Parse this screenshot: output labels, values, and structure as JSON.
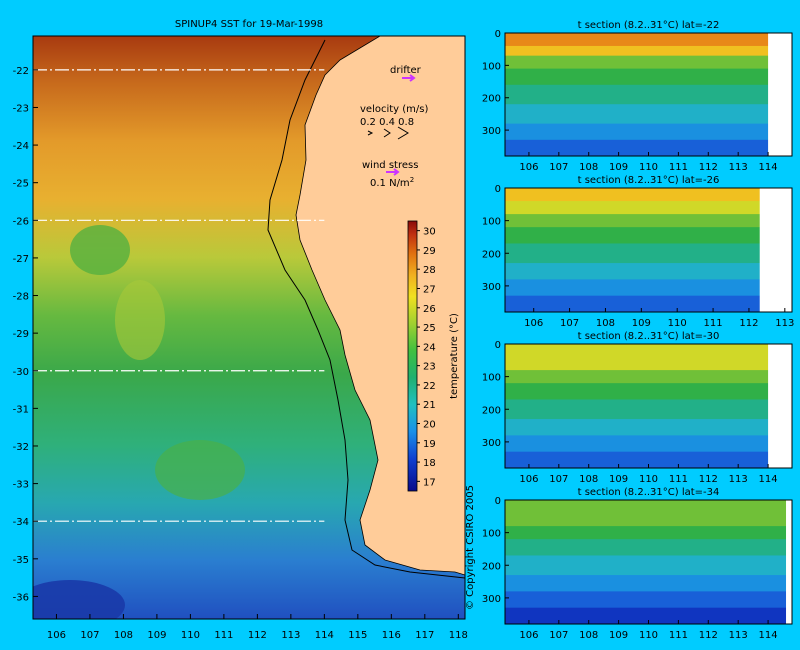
{
  "background_color": "#00ccff",
  "land_color": "#ffcc99",
  "map": {
    "title": "SPINUP4 SST for 19-Mar-1998",
    "x_ticks": [
      "106",
      "107",
      "108",
      "109",
      "110",
      "111",
      "112",
      "113",
      "114",
      "115",
      "116",
      "117",
      "118"
    ],
    "y_ticks": [
      "-22",
      "-23",
      "-24",
      "-25",
      "-26",
      "-27",
      "-28",
      "-29",
      "-30",
      "-31",
      "-32",
      "-33",
      "-34",
      "-35",
      "-36"
    ],
    "xlim": [
      105.3,
      118.2
    ],
    "ylim": [
      -36.6,
      -21.1
    ],
    "section_lines_lat": [
      -22,
      -26,
      -30,
      -34
    ],
    "legend": {
      "drifter": "drifter",
      "velocity_title": "velocity (m/s)",
      "velocity_values": "0.2 0.4 0.8",
      "wind_title": "wind stress",
      "wind_value": "0.1 N/m",
      "wind_exp": "2"
    },
    "colorbar": {
      "label": "temperature (°C)",
      "ticks": [
        "17",
        "18",
        "19",
        "20",
        "21",
        "22",
        "23",
        "24",
        "25",
        "26",
        "27",
        "28",
        "29",
        "30"
      ],
      "range": [
        16.5,
        30.5
      ]
    },
    "copyright": "© Copyright CSIRO 2005"
  },
  "chart_data": [
    {
      "type": "heatmap",
      "title": "SPINUP4 SST for 19-Mar-1998",
      "variable": "temperature (°C)",
      "xlim": [
        105.3,
        118.2
      ],
      "ylim": [
        -36.6,
        -21.1
      ],
      "color_range": [
        16.5,
        30.5
      ],
      "sample_temperature_by_lat": [
        {
          "lat": -22,
          "temp": 28.5
        },
        {
          "lat": -24,
          "temp": 27
        },
        {
          "lat": -26,
          "temp": 25.5
        },
        {
          "lat": -28,
          "temp": 25
        },
        {
          "lat": -30,
          "temp": 23.5
        },
        {
          "lat": -32,
          "temp": 22.5
        },
        {
          "lat": -34,
          "temp": 21.5
        },
        {
          "lat": -36,
          "temp": 19.5
        }
      ]
    },
    {
      "type": "heatmap",
      "title": "t section (8.2..31°C) lat=-22",
      "x_ticks": [
        "106",
        "107",
        "108",
        "109",
        "110",
        "111",
        "112",
        "113",
        "114"
      ],
      "y_ticks": [
        "0",
        "100",
        "200",
        "300"
      ],
      "xlim": [
        105.2,
        114.8
      ],
      "ylim": [
        0,
        380
      ],
      "land_from_lon": 114.0,
      "profile": [
        [
          0,
          28
        ],
        [
          40,
          26
        ],
        [
          70,
          23
        ],
        [
          110,
          21
        ],
        [
          160,
          19
        ],
        [
          220,
          17
        ],
        [
          280,
          15
        ],
        [
          330,
          13
        ],
        [
          380,
          11
        ]
      ]
    },
    {
      "type": "heatmap",
      "title": "t section (8.2..31°C) lat=-26",
      "x_ticks": [
        "106",
        "107",
        "108",
        "109",
        "110",
        "111",
        "112",
        "113"
      ],
      "y_ticks": [
        "0",
        "100",
        "200",
        "300"
      ],
      "xlim": [
        105.2,
        113.2
      ],
      "ylim": [
        0,
        380
      ],
      "land_from_lon": 112.3,
      "profile": [
        [
          0,
          26
        ],
        [
          40,
          25
        ],
        [
          80,
          23
        ],
        [
          120,
          21
        ],
        [
          170,
          19
        ],
        [
          230,
          17
        ],
        [
          280,
          15
        ],
        [
          330,
          13
        ],
        [
          380,
          11
        ]
      ]
    },
    {
      "type": "heatmap",
      "title": "t section (8.2..31°C) lat=-30",
      "x_ticks": [
        "106",
        "107",
        "108",
        "109",
        "110",
        "111",
        "112",
        "113",
        "114"
      ],
      "y_ticks": [
        "0",
        "100",
        "200",
        "300"
      ],
      "xlim": [
        105.2,
        114.8
      ],
      "ylim": [
        0,
        380
      ],
      "land_from_lon": 114.0,
      "profile": [
        [
          0,
          25
        ],
        [
          40,
          24
        ],
        [
          80,
          22
        ],
        [
          120,
          20
        ],
        [
          170,
          18
        ],
        [
          230,
          16
        ],
        [
          280,
          14
        ],
        [
          330,
          12
        ],
        [
          380,
          10
        ]
      ]
    },
    {
      "type": "heatmap",
      "title": "t section (8.2..31°C) lat=-34",
      "x_ticks": [
        "106",
        "107",
        "108",
        "109",
        "110",
        "111",
        "112",
        "113",
        "114"
      ],
      "y_ticks": [
        "0",
        "100",
        "200",
        "300"
      ],
      "xlim": [
        105.2,
        114.8
      ],
      "ylim": [
        0,
        380
      ],
      "land_from_lon": 114.6,
      "profile": [
        [
          0,
          23
        ],
        [
          40,
          22
        ],
        [
          80,
          20
        ],
        [
          120,
          18
        ],
        [
          170,
          16
        ],
        [
          230,
          14
        ],
        [
          280,
          12
        ],
        [
          330,
          10
        ],
        [
          380,
          9
        ]
      ]
    }
  ]
}
